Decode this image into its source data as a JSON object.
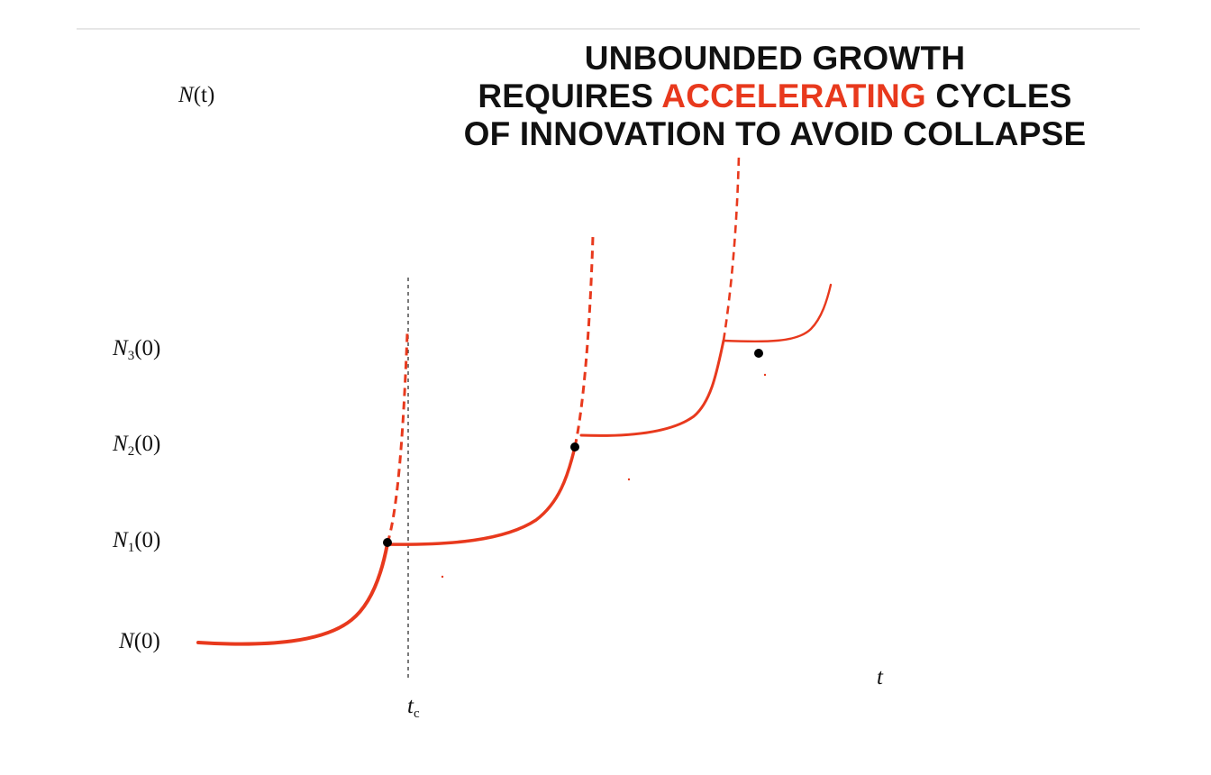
{
  "title": {
    "line1": "UNBOUNDED GROWTH",
    "line2_before": "REQUIRES ",
    "line2_highlight": "ACCELERATING",
    "line2_after": " CYCLES",
    "line3": "OF INNOVATION TO AVOID COLLAPSE"
  },
  "axis": {
    "y_label_var": "N",
    "y_label_arg": "(t)",
    "x_label": "t",
    "tc_var": "t",
    "tc_sub": "c"
  },
  "levels": [
    {
      "var": "N",
      "sub": "",
      "arg": "(0)"
    },
    {
      "var": "N",
      "sub": "1",
      "arg": "(0)"
    },
    {
      "var": "N",
      "sub": "2",
      "arg": "(0)"
    },
    {
      "var": "N",
      "sub": "3",
      "arg": "(0)"
    }
  ],
  "colors": {
    "curve": "#e8391d",
    "highlight": "#e8391d",
    "text": "#111111",
    "marker": "#000000"
  }
}
